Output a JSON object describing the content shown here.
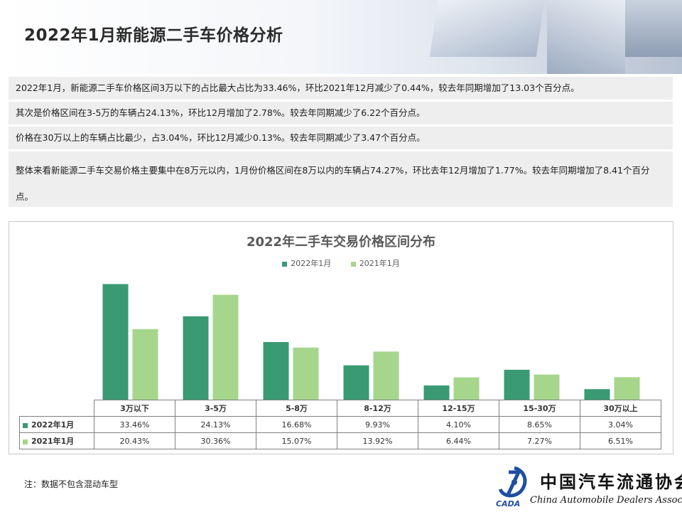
{
  "page": {
    "title": "2022年1月新能源二手车价格分析",
    "note": "注：数据不包含混动车型"
  },
  "paragraphs": [
    "2022年1月，新能源二手车价格区间3万以下的占比最大占比为33.46%，环比2021年12月减少了0.44%，较去年同期增加了13.03个百分点。",
    "其次是价格区间在3-5万的车辆占24.13%，环比12月增加了2.78%。较去年同期减少了6.22个百分点。",
    "价格在30万以上的车辆占比最少，占3.04%，环比12月减少0.13%。较去年同期减少了3.47个百分点。",
    "整体来看新能源二手车交易价格主要集中在8万元以内，1月份价格区间在8万以内的车辆占74.27%，环比去年12月增加了1.77%。较去年同期增加了8.41个百分点。"
  ],
  "logo": {
    "cn": "中国汽车流通协会",
    "en": "China Automobile Dealers Association",
    "abbr": "CADA"
  },
  "colors": {
    "series1": "#3a9a73",
    "series2": "#a5d68c",
    "border": "#7f7f7f"
  },
  "chart_data": {
    "type": "bar",
    "title": "2022年二手车交易价格区间分布",
    "categories": [
      "3万以下",
      "3-5万",
      "5-8万",
      "8-12万",
      "12-15万",
      "15-30万",
      "30万以上"
    ],
    "series": [
      {
        "name": "2022年1月",
        "values": [
          33.46,
          24.13,
          16.68,
          9.93,
          4.1,
          8.65,
          3.04
        ],
        "labels": [
          "33.46%",
          "24.13%",
          "16.68%",
          "9.93%",
          "4.10%",
          "8.65%",
          "3.04%"
        ]
      },
      {
        "name": "2021年1月",
        "values": [
          20.43,
          30.36,
          15.07,
          13.92,
          6.44,
          7.27,
          6.51
        ],
        "labels": [
          "20.43%",
          "30.36%",
          "15.07%",
          "13.92%",
          "6.44%",
          "7.27%",
          "6.51%"
        ]
      }
    ],
    "ylim": [
      0,
      35
    ],
    "legend": "top",
    "grid": false,
    "data_table": true
  }
}
